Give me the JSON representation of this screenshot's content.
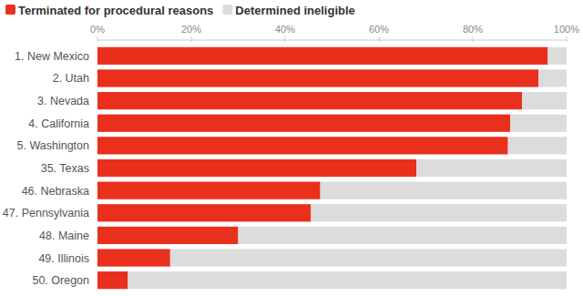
{
  "chart_data": {
    "type": "bar",
    "orientation": "horizontal",
    "stacked": true,
    "grid": false,
    "legend": "top-left",
    "categories": [
      "1. New Mexico",
      "2. Utah",
      "3. Nevada",
      "4. California",
      "5. Washington",
      "35. Texas",
      "46. Nebraska",
      "47. Pennsylvania",
      "48. Maine",
      "49. Illinois",
      "50. Oregon"
    ],
    "series": [
      {
        "name": "Terminated for procedural reasons",
        "color": "#e8301c",
        "values": [
          96,
          94,
          90.5,
          88,
          87.5,
          68,
          47.5,
          45.5,
          30,
          15.5,
          6.5
        ]
      },
      {
        "name": "Determined ineligible",
        "color": "#dcdcdc",
        "values": [
          4,
          6,
          9.5,
          12,
          12.5,
          32,
          52.5,
          54.5,
          70,
          84.5,
          93.5
        ]
      }
    ],
    "xlim": [
      0,
      100
    ],
    "xticks": [
      {
        "value": 0,
        "label": "0%"
      },
      {
        "value": 20,
        "label": "20%"
      },
      {
        "value": 40,
        "label": "40%"
      },
      {
        "value": 60,
        "label": "60%"
      },
      {
        "value": 80,
        "label": "80%"
      },
      {
        "value": 100,
        "label": "100%"
      }
    ]
  }
}
